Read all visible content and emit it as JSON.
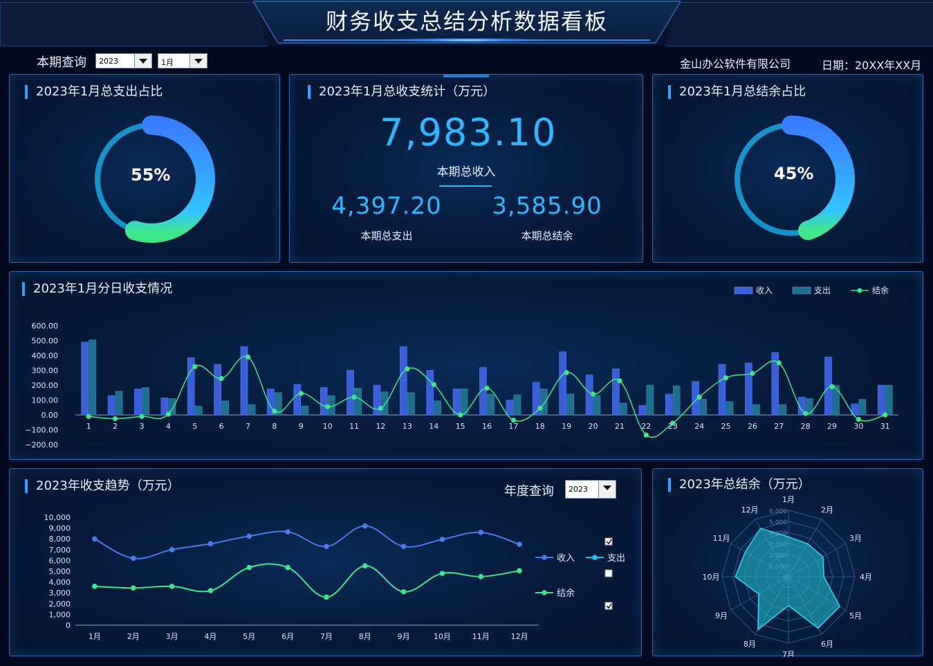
{
  "header": {
    "title": "财务收支总结分析数据看板"
  },
  "query": {
    "label": "本期查询",
    "year": "2023",
    "month": "1月"
  },
  "company": "金山办公软件有限公司",
  "date": "日期：20XX年XX月",
  "panel_expense_ratio": {
    "title": "2023年1月总支出占比",
    "percent": "55%",
    "value": 0.55
  },
  "panel_totals": {
    "title": "2023年1月总收支统计（万元）",
    "income": "7,983.10",
    "income_label": "本期总收入",
    "expense": "4,397.20",
    "expense_label": "本期总支出",
    "balance": "3,585.90",
    "balance_label": "本期总结余"
  },
  "panel_balance_ratio": {
    "title": "2023年1月总结余占比",
    "percent": "45%",
    "value": 0.45
  },
  "daily": {
    "title": "2023年1月分日收支情况"
  },
  "trend": {
    "title": "2023年收支趋势（万元）",
    "query_label": "年度查询",
    "year": "2023"
  },
  "radar": {
    "title": "2023年总结余（万元）"
  },
  "colors": {
    "income": "#3a5fd9",
    "expense": "#1f6f8e",
    "balance": "#3ee88a",
    "accent": "#2fb8ff"
  },
  "chart_data": [
    {
      "type": "bar",
      "title": "2023年1月分日收支情况",
      "categories": [
        "1",
        "2",
        "3",
        "4",
        "5",
        "6",
        "7",
        "8",
        "9",
        "10",
        "11",
        "12",
        "13",
        "14",
        "15",
        "16",
        "17",
        "18",
        "19",
        "20",
        "21",
        "22",
        "23",
        "24",
        "25",
        "26",
        "27",
        "28",
        "29",
        "30",
        "31"
      ],
      "yticks": [
        "600.00",
        "500.00",
        "400.00",
        "300.00",
        "200.00",
        "100.00",
        "0.00",
        "−100.00",
        "−200.00"
      ],
      "ylim": [
        -200,
        600
      ],
      "series": [
        {
          "name": "收入",
          "kind": "bar",
          "values": [
            490,
            130,
            175,
            115,
            385,
            340,
            460,
            175,
            205,
            185,
            300,
            200,
            460,
            300,
            175,
            320,
            100,
            220,
            425,
            270,
            310,
            65,
            140,
            225,
            340,
            350,
            420,
            120,
            390,
            75,
            200
          ]
        },
        {
          "name": "支出",
          "kind": "bar",
          "values": [
            505,
            160,
            185,
            110,
            60,
            95,
            70,
            150,
            60,
            130,
            180,
            155,
            150,
            95,
            175,
            140,
            135,
            175,
            140,
            130,
            80,
            200,
            195,
            105,
            90,
            70,
            70,
            110,
            200,
            105,
            200
          ]
        },
        {
          "name": "结余",
          "kind": "line",
          "values": [
            -10,
            -25,
            -10,
            5,
            325,
            245,
            390,
            25,
            145,
            55,
            120,
            45,
            310,
            205,
            0,
            180,
            -35,
            45,
            285,
            140,
            230,
            -135,
            -55,
            120,
            250,
            280,
            350,
            10,
            190,
            -30,
            0
          ]
        }
      ]
    },
    {
      "type": "line",
      "title": "2023年收支趋势（万元）",
      "categories": [
        "1月",
        "2月",
        "3月",
        "4月",
        "5月",
        "6月",
        "7月",
        "8月",
        "9月",
        "10月",
        "11月",
        "12月"
      ],
      "yticks": [
        "10,000",
        "9,000",
        "8,000",
        "7,000",
        "6,000",
        "5,000",
        "4,000",
        "3,000",
        "2,000",
        "1,000",
        "0"
      ],
      "ylim": [
        0,
        10000
      ],
      "series": [
        {
          "name": "收入",
          "values": [
            8000,
            6200,
            7000,
            7550,
            8250,
            8650,
            7300,
            9200,
            7300,
            7950,
            8600,
            7500
          ]
        },
        {
          "name": "结余",
          "values": [
            3600,
            3450,
            3600,
            3200,
            5350,
            5350,
            2600,
            5500,
            3100,
            4800,
            4500,
            5050
          ]
        }
      ],
      "legend": [
        {
          "name": "收入",
          "checked": true
        },
        {
          "name": "支出",
          "checked": false
        },
        {
          "name": "结余",
          "checked": true
        }
      ]
    },
    {
      "type": "radar",
      "title": "2023年总结余（万元）",
      "categories": [
        "1月",
        "2月",
        "3月",
        "4月",
        "5月",
        "6月",
        "7月",
        "8月",
        "9月",
        "10月",
        "11月",
        "12月"
      ],
      "rticks": [
        "0",
        "1,000",
        "2,000",
        "3,000",
        "4,000",
        "5,000",
        "6,000"
      ],
      "rlim": [
        0,
        6000
      ],
      "values": [
        3600,
        3450,
        3600,
        3200,
        5350,
        5350,
        2600,
        5500,
        3100,
        4800,
        4500,
        5050
      ]
    }
  ]
}
